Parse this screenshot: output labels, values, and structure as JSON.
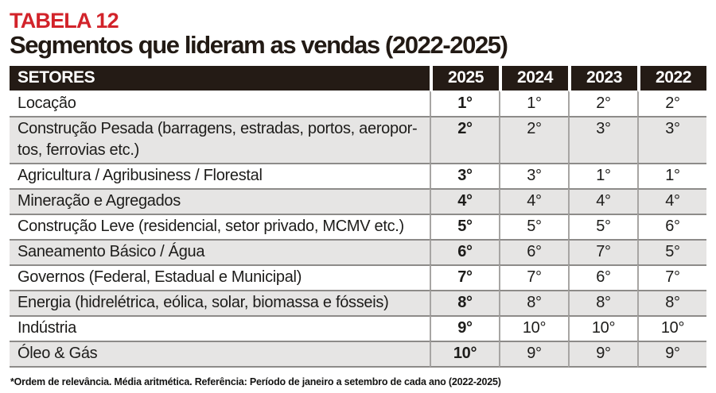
{
  "header": {
    "label": "TABELA 12",
    "title": "Segmentos que lideram as vendas (2022-2025)"
  },
  "colors": {
    "accent_red": "#d2232a",
    "header_bg": "#241b15",
    "row_alt_bg": "#e6e5e4",
    "divider_gray": "#8d8b89"
  },
  "table": {
    "columns": [
      "SETORES",
      "2025",
      "2024",
      "2023",
      "2022"
    ],
    "rows": [
      {
        "sector": "Locação",
        "values": [
          "1°",
          "1°",
          "2°",
          "2°"
        ]
      },
      {
        "sector": "Construção Pesada (barragens, estradas, portos, aeropor-\ntos, ferrovias etc.)",
        "values": [
          "2°",
          "2°",
          "3°",
          "3°"
        ]
      },
      {
        "sector": "Agricultura / Agribusiness / Florestal",
        "values": [
          "3°",
          "3°",
          "1°",
          "1°"
        ]
      },
      {
        "sector": "Mineração e Agregados",
        "values": [
          "4°",
          "4°",
          "4°",
          "4°"
        ]
      },
      {
        "sector": "Construção Leve (residencial, setor privado, MCMV etc.)",
        "values": [
          "5°",
          "5°",
          "5°",
          "6°"
        ]
      },
      {
        "sector": "Saneamento Básico / Água",
        "values": [
          "6°",
          "6°",
          "7°",
          "5°"
        ]
      },
      {
        "sector": "Governos (Federal, Estadual e Municipal)",
        "values": [
          "7°",
          "7°",
          "6°",
          "7°"
        ]
      },
      {
        "sector": "Energia (hidrelétrica, eólica, solar, biomassa e fósseis)",
        "values": [
          "8°",
          "8°",
          "8°",
          "8°"
        ]
      },
      {
        "sector": "Indústria",
        "values": [
          "9°",
          "10°",
          "10°",
          "10°"
        ]
      },
      {
        "sector": "Óleo & Gás",
        "values": [
          "10°",
          "9°",
          "9°",
          "9°"
        ]
      }
    ]
  },
  "footnote": "*Ordem de relevância. Média aritmética. Referência: Período de janeiro a setembro de cada ano (2022-2025)",
  "chart_data": {
    "type": "table",
    "title": "TABELA 12 — Segmentos que lideram as vendas (2022-2025)",
    "columns": [
      "SETORES",
      "2025",
      "2024",
      "2023",
      "2022"
    ],
    "rows": [
      {
        "sector": "Locação",
        "ranks": [
          1,
          1,
          2,
          2
        ]
      },
      {
        "sector": "Construção Pesada (barragens, estradas, portos, aeroportos, ferrovias etc.)",
        "ranks": [
          2,
          2,
          3,
          3
        ]
      },
      {
        "sector": "Agricultura / Agribusiness / Florestal",
        "ranks": [
          3,
          3,
          1,
          1
        ]
      },
      {
        "sector": "Mineração e Agregados",
        "ranks": [
          4,
          4,
          4,
          4
        ]
      },
      {
        "sector": "Construção Leve (residencial, setor privado, MCMV etc.)",
        "ranks": [
          5,
          5,
          5,
          6
        ]
      },
      {
        "sector": "Saneamento Básico / Água",
        "ranks": [
          6,
          6,
          7,
          5
        ]
      },
      {
        "sector": "Governos (Federal, Estadual e Municipal)",
        "ranks": [
          7,
          7,
          6,
          7
        ]
      },
      {
        "sector": "Energia (hidrelétrica, eólica, solar, biomassa e fósseis)",
        "ranks": [
          8,
          8,
          8,
          8
        ]
      },
      {
        "sector": "Indústria",
        "ranks": [
          9,
          10,
          10,
          10
        ]
      },
      {
        "sector": "Óleo & Gás",
        "ranks": [
          10,
          9,
          9,
          9
        ]
      }
    ],
    "notes": "Rankings (1° = líder) por ano; ordem de relevância, média aritmética, janeiro a setembro de cada ano"
  }
}
